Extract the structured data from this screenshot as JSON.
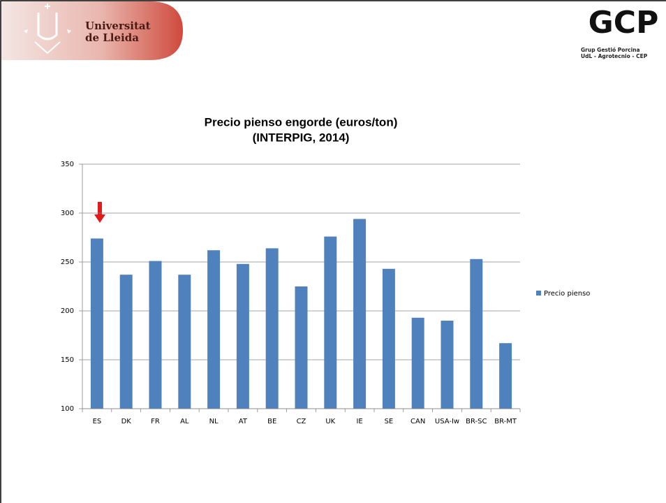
{
  "header": {
    "university": [
      "Universitat",
      "de Lleida"
    ],
    "logo_letters": "GCP",
    "logo_lines": [
      "Grup Gestió Porcina",
      "UdL - Agrotecnio - CEP"
    ]
  },
  "chart_data": {
    "type": "bar",
    "title": [
      "Precio pienso engorde (euros/ton)",
      "(INTERPIG, 2014)"
    ],
    "categories": [
      "ES",
      "DK",
      "FR",
      "AL",
      "NL",
      "AT",
      "BE",
      "CZ",
      "UK",
      "IE",
      "SE",
      "CAN",
      "USA-Iw",
      "BR-SC",
      "BR-MT"
    ],
    "series": [
      {
        "name": "Precio pienso",
        "color": "#4f81bd",
        "values": [
          274,
          237,
          251,
          237,
          262,
          248,
          264,
          225,
          276,
          294,
          243,
          193,
          190,
          253,
          167
        ]
      }
    ],
    "ylim": [
      100,
      350
    ],
    "yticks": [
      100,
      150,
      200,
      250,
      300,
      350
    ],
    "grid": true,
    "legend": "right"
  }
}
